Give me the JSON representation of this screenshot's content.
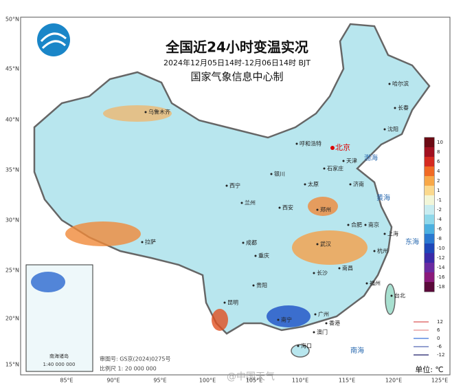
{
  "header": {
    "title": "全国近24小时变温实况",
    "subtitle": "2024年12月05日14时-12月06日14时 BJT",
    "producer": "国家气象信息中心制"
  },
  "latitude_labels": [
    "50°N",
    "45°N",
    "40°N",
    "35°N",
    "30°N",
    "25°N",
    "20°N",
    "15°N"
  ],
  "longitude_labels": [
    "85°E",
    "90°E",
    "95°E",
    "100°E",
    "105°E",
    "110°E",
    "115°E",
    "120°E",
    "125°E"
  ],
  "cities": [
    "乌鲁木齐",
    "哈尔滨",
    "长春",
    "沈阳",
    "呼和浩特",
    "北京",
    "天津",
    "石家庄",
    "银川",
    "太原",
    "济南",
    "西宁",
    "兰州",
    "郑州",
    "西安",
    "合肥",
    "南京",
    "上海",
    "成都",
    "拉萨",
    "武汉",
    "杭州",
    "重庆",
    "长沙",
    "南昌",
    "贵阳",
    "福州",
    "台北",
    "昆明",
    "南宁",
    "广州",
    "香港",
    "澳门",
    "海口"
  ],
  "seas": [
    "渤海",
    "黄海",
    "东海",
    "南海"
  ],
  "legend": {
    "levels": [
      {
        "value": 10,
        "color": "#6b0a14"
      },
      {
        "value": 8,
        "color": "#a01020"
      },
      {
        "value": 6,
        "color": "#d42a20"
      },
      {
        "value": 4,
        "color": "#f06a24"
      },
      {
        "value": 2,
        "color": "#f8a848"
      },
      {
        "value": 1,
        "color": "#fbd98e"
      },
      {
        "value": -1,
        "color": "#f2f6d8"
      },
      {
        "value": -2,
        "color": "#c8ecf0"
      },
      {
        "value": -4,
        "color": "#8fd8ea"
      },
      {
        "value": -6,
        "color": "#4cb0e0"
      },
      {
        "value": -8,
        "color": "#2a78d0"
      },
      {
        "value": -10,
        "color": "#1e46b8"
      },
      {
        "value": -12,
        "color": "#3a2aa8"
      },
      {
        "value": -14,
        "color": "#6a2aa0"
      },
      {
        "value": -16,
        "color": "#8a1a7a"
      },
      {
        "value": -18,
        "color": "#5a0a3a"
      }
    ],
    "contours": [
      {
        "value": 12,
        "color": "#e07070"
      },
      {
        "value": 6,
        "color": "#e8a0a0"
      },
      {
        "value": 0,
        "color": "#5a8ae0"
      },
      {
        "value": -6,
        "color": "#7080c0"
      },
      {
        "value": -12,
        "color": "#404080"
      }
    ],
    "unit": "单位: ℃"
  },
  "inset": {
    "title": "南海诸岛",
    "scale": "1:40 000 000"
  },
  "credits": {
    "review": "审图号: GS京(2024)0275号",
    "scale": "比例尺 1: 20 000 000"
  },
  "watermark": "@中国天气"
}
